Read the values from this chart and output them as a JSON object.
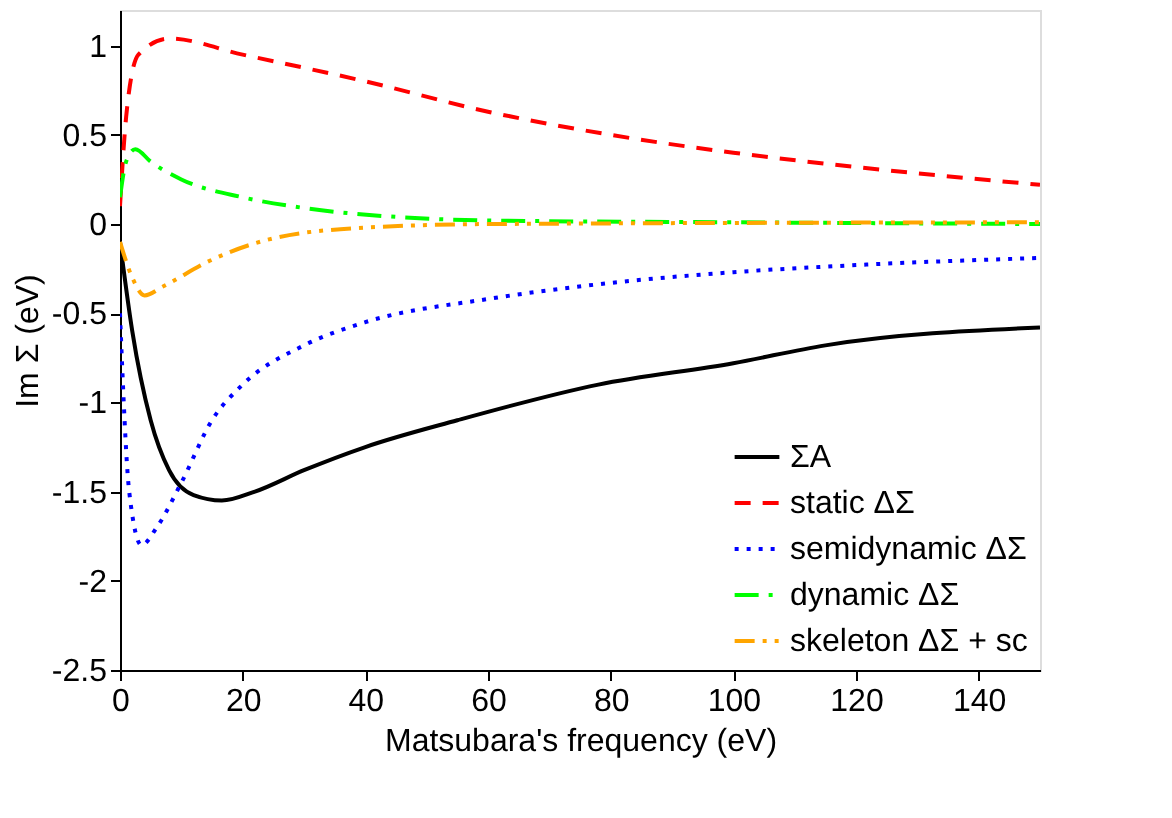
{
  "chart_data": {
    "type": "line",
    "xlabel": "Matsubara's frequency (eV)",
    "ylabel": "Im Σ (eV)",
    "xlim": [
      0,
      150
    ],
    "ylim": [
      -2.5,
      1.2
    ],
    "xticks": [
      0,
      20,
      40,
      60,
      80,
      100,
      120,
      140
    ],
    "yticks": [
      -2.5,
      -2,
      -1.5,
      -1,
      -0.5,
      0,
      0.5,
      1
    ],
    "grid": false,
    "legend": "bottom right",
    "marker": "none",
    "series": [
      {
        "name": "ΣA",
        "color": "#000000",
        "line_style": "solid",
        "x": [
          0,
          2,
          5,
          8,
          12,
          16.6,
          22,
          30,
          40,
          55,
          78,
          100,
          115,
          150
        ],
        "values": [
          -0.1,
          -0.6,
          -1.1,
          -1.38,
          -1.52,
          -1.55,
          -1.5,
          -1.38,
          -1.25,
          -1.1,
          -0.9,
          -0.78,
          -0.68,
          -0.58
        ]
      },
      {
        "name": "static ΔΣ",
        "color": "#ff0000",
        "line_style": "dashed",
        "x": [
          0,
          1,
          3,
          8,
          20,
          40,
          60,
          80,
          100,
          120,
          150
        ],
        "values": [
          0.1,
          0.6,
          0.95,
          1.04,
          0.95,
          0.8,
          0.63,
          0.5,
          0.4,
          0.32,
          0.22
        ]
      },
      {
        "name": "semidynamic ΔΣ",
        "color": "#0000ff",
        "line_style": "dotted",
        "x": [
          0,
          1.5,
          3.5,
          6,
          10,
          15,
          20,
          30,
          40,
          60,
          80,
          100,
          120,
          150
        ],
        "values": [
          -0.5,
          -1.5,
          -1.8,
          -1.7,
          -1.45,
          -1.1,
          -0.9,
          -0.68,
          -0.55,
          -0.42,
          -0.33,
          -0.27,
          -0.23,
          -0.19
        ]
      },
      {
        "name": "dynamic ΔΣ",
        "color": "#00ff00",
        "line_style": "dashdot",
        "x": [
          0,
          1,
          2.5,
          5,
          10,
          20,
          30,
          45,
          60,
          100,
          150
        ],
        "values": [
          0.15,
          0.35,
          0.42,
          0.35,
          0.25,
          0.15,
          0.09,
          0.04,
          0.02,
          0.01,
          0.0
        ]
      },
      {
        "name": "skeleton ΔΣ + sc",
        "color": "#ffa500",
        "line_style": "dashdotdot",
        "x": [
          0,
          2,
          4,
          7,
          15,
          25,
          40,
          60,
          150
        ],
        "values": [
          -0.1,
          -0.3,
          -0.4,
          -0.35,
          -0.2,
          -0.08,
          -0.02,
          0.0,
          0.01
        ]
      }
    ]
  }
}
